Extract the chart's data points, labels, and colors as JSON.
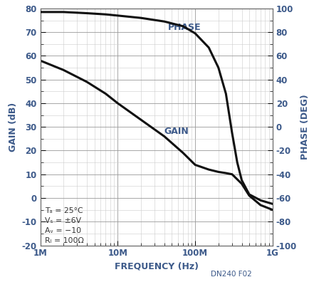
{
  "xlabel": "FREQUENCY (Hz)",
  "ylabel_left": "GAIN (dB)",
  "ylabel_right": "PHASE (DEG)",
  "xlim": [
    1000000.0,
    1000000000.0
  ],
  "ylim_left": [
    -20,
    80
  ],
  "ylim_right": [
    -100,
    100
  ],
  "yticks_left": [
    -20,
    -10,
    0,
    10,
    20,
    30,
    40,
    50,
    60,
    70,
    80
  ],
  "yticks_right": [
    -100,
    -80,
    -60,
    -40,
    -20,
    0,
    20,
    40,
    60,
    80,
    100
  ],
  "xticks": [
    1000000.0,
    10000000.0,
    100000000.0,
    1000000000.0
  ],
  "xticklabels": [
    "1M",
    "10M",
    "100M",
    "1G"
  ],
  "label_gain": "GAIN",
  "label_phase": "PHASE",
  "watermark": "DN240 F02",
  "line_color": "#111111",
  "background_color": "#ffffff",
  "grid_color_major": "#999999",
  "grid_color_minor": "#cccccc",
  "text_color": "#3d5a8a",
  "ann_color": "#333333",
  "gain_freq": [
    1000000.0,
    2000000.0,
    4000000.0,
    7000000.0,
    10000000.0,
    20000000.0,
    40000000.0,
    70000000.0,
    100000000.0,
    150000000.0,
    200000000.0,
    250000000.0,
    300000000.0,
    400000000.0,
    500000000.0,
    700000000.0,
    1000000000.0
  ],
  "gain_vals": [
    58,
    54,
    49,
    44,
    40,
    33,
    26,
    19,
    14,
    12,
    11,
    10.5,
    10,
    6,
    1,
    -3,
    -5
  ],
  "phase_freq": [
    1000000.0,
    2000000.0,
    4000000.0,
    7000000.0,
    10000000.0,
    20000000.0,
    40000000.0,
    70000000.0,
    100000000.0,
    150000000.0,
    200000000.0,
    250000000.0,
    300000000.0,
    350000000.0,
    400000000.0,
    500000000.0,
    700000000.0,
    1000000000.0
  ],
  "phase_vals": [
    97,
    97,
    96,
    95,
    94,
    92,
    89,
    85,
    79,
    67,
    50,
    28,
    -5,
    -30,
    -45,
    -57,
    -62,
    -65
  ]
}
